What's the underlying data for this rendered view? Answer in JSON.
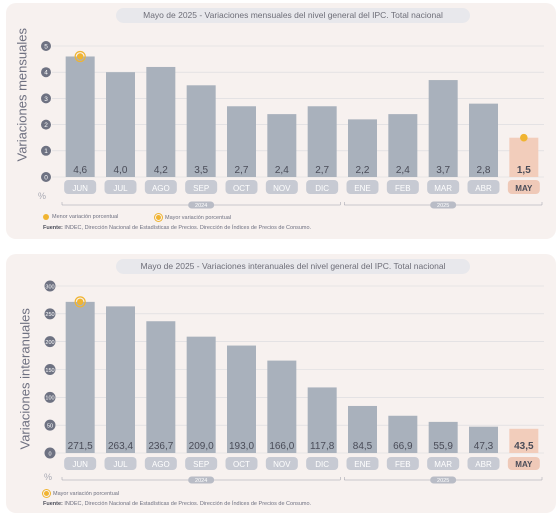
{
  "chart_data": [
    {
      "type": "bar",
      "title": "Mayo de 2025 - Variaciones mensuales del nivel general del IPC. Total nacional",
      "ylabel": "Variaciones mensuales",
      "unit": "%",
      "categories": [
        "JUN",
        "JUL",
        "AGO",
        "SEP",
        "OCT",
        "NOV",
        "DIC",
        "ENE",
        "FEB",
        "MAR",
        "ABR",
        "MAY"
      ],
      "values": [
        4.6,
        4.0,
        4.2,
        3.5,
        2.7,
        2.4,
        2.7,
        2.2,
        2.4,
        3.7,
        2.8,
        1.5
      ],
      "value_labels": [
        "4,6",
        "4,0",
        "4,2",
        "3,5",
        "2,7",
        "2,4",
        "2,7",
        "2,2",
        "2,4",
        "3,7",
        "2,8",
        "1,5"
      ],
      "yticks": [
        0,
        1,
        2,
        3,
        4,
        5
      ],
      "ylim": [
        0,
        5
      ],
      "years": [
        {
          "label": "2024",
          "from": 0,
          "to": 6
        },
        {
          "label": "2025",
          "from": 7,
          "to": 11
        }
      ],
      "highlight_index": 11,
      "markers": [
        {
          "index": 0,
          "style": "ring"
        },
        {
          "index": 11,
          "style": "solid"
        }
      ],
      "legend": [
        {
          "style": "solid",
          "label": "Menor variación porcentual"
        },
        {
          "style": "ring",
          "label": "Mayor variación porcentual"
        }
      ],
      "source_label": "Fuente:",
      "source_text": "INDEC, Dirección Nacional de Estadísticas de Precios. Dirección de Índices de Precios de Consumo."
    },
    {
      "type": "bar",
      "title": "Mayo de 2025 - Variaciones interanuales del nivel general del IPC. Total nacional",
      "ylabel": "Variaciones interanuales",
      "unit": "%",
      "categories": [
        "JUN",
        "JUL",
        "AGO",
        "SEP",
        "OCT",
        "NOV",
        "DIC",
        "ENE",
        "FEB",
        "MAR",
        "ABR",
        "MAY"
      ],
      "values": [
        271.5,
        263.4,
        236.7,
        209.0,
        193.0,
        166.0,
        117.8,
        84.5,
        66.9,
        55.9,
        47.3,
        43.5
      ],
      "value_labels": [
        "271,5",
        "263,4",
        "236,7",
        "209,0",
        "193,0",
        "166,0",
        "117,8",
        "84,5",
        "66,9",
        "55,9",
        "47,3",
        "43,5"
      ],
      "yticks": [
        0,
        50,
        100,
        150,
        200,
        250,
        300
      ],
      "ylim": [
        0,
        300
      ],
      "years": [
        {
          "label": "2024",
          "from": 0,
          "to": 6
        },
        {
          "label": "2025",
          "from": 7,
          "to": 11
        }
      ],
      "highlight_index": 11,
      "markers": [
        {
          "index": 0,
          "style": "ring"
        }
      ],
      "legend": [
        {
          "style": "ring",
          "label": "Mayor variación porcentual"
        }
      ],
      "source_label": "Fuente:",
      "source_text": "INDEC, Dirección Nacional de Estadísticas de Precios. Dirección de Índices de Precios de Consumo."
    }
  ],
  "colors": {
    "bar": "#a9b1bc",
    "highlight_bar": "#f2cdbb",
    "marker": "#f0b431",
    "tick_circle": "#6e7282",
    "grid": "#d8d9de",
    "month_pill": "#c7cad3",
    "month_pill_highlight": "#efc9b8",
    "label_highlight": "#4a4c58"
  }
}
